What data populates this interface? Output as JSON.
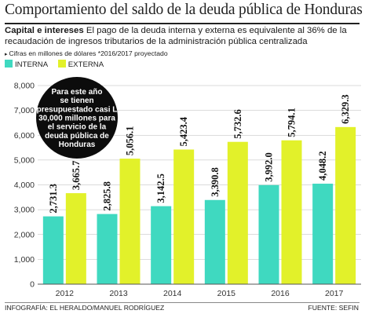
{
  "title": "Comportamiento del saldo de la deuda pública de Honduras",
  "subtitle_bold": "Capital e intereses",
  "subtitle_text": "El pago de la deuda interna y externa es equivalente al 36% de la recaudación de ingresos tributarios de la administración pública centralizada",
  "note": "Cifras en millones de dólares *2016/2017 proyectado",
  "note_marker": "▸",
  "callout": "Para este año se tienen presupuestado casi L 30,000 millones para el servicio de la deuda pública de Honduras",
  "footer_left": "INFOGRAFÍA: EL HERALDO/MANUEL RODRÍGUEZ",
  "footer_right": "FUENTE: SEFIN",
  "colors": {
    "interna": "#3fd9c0",
    "externa": "#e2f12a",
    "grid": "#b8b8b8",
    "axis": "#555555"
  },
  "chart_data": {
    "type": "bar",
    "categories": [
      "2012",
      "2013",
      "2014",
      "2015",
      "2016",
      "2017"
    ],
    "series": [
      {
        "name": "INTERNA",
        "values": [
          2731.3,
          2825.8,
          3142.5,
          3390.8,
          3992.0,
          4048.2
        ],
        "labels": [
          "2,731.3",
          "2,825.8",
          "3,142.5",
          "3,390.8",
          "3,992.0",
          "4,048.2"
        ]
      },
      {
        "name": "EXTERNA",
        "values": [
          3665.7,
          5056.1,
          5423.4,
          5732.6,
          5794.1,
          6329.3
        ],
        "labels": [
          "3,665.7",
          "5,056.1",
          "5,423.4",
          "5,732.6",
          "5,794.1",
          "6,329.3"
        ]
      }
    ],
    "yticks": [
      "0",
      "1,000",
      "2,000",
      "3,000",
      "4,000",
      "5,000",
      "6,000",
      "7,000",
      "8,000"
    ],
    "ylim": [
      0,
      8000
    ],
    "grid": true,
    "legend_position": "top-left"
  }
}
